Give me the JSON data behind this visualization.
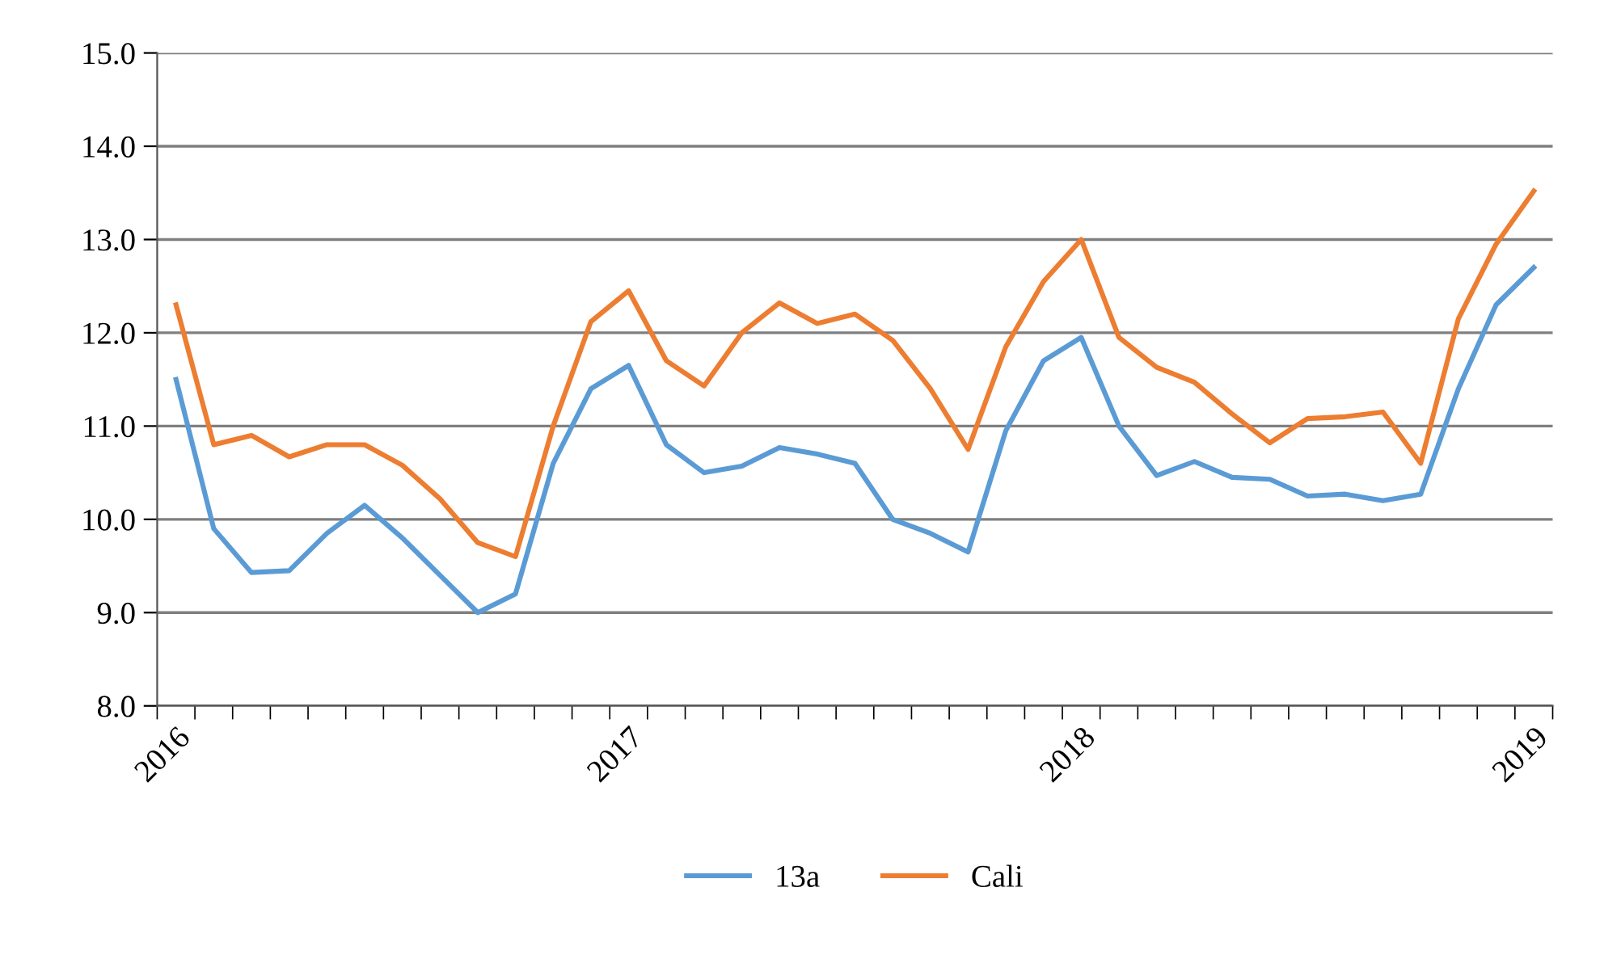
{
  "chart_data": {
    "type": "line",
    "categories": [
      "2016",
      null,
      null,
      null,
      null,
      null,
      null,
      null,
      null,
      null,
      null,
      null,
      "2017",
      null,
      null,
      null,
      null,
      null,
      null,
      null,
      null,
      null,
      null,
      null,
      "2018",
      null,
      null,
      null,
      null,
      null,
      null,
      null,
      null,
      null,
      null,
      null,
      "2019"
    ],
    "series": [
      {
        "name": "13a",
        "color": "#5b9bd5",
        "values": [
          11.5,
          9.9,
          9.43,
          9.45,
          9.85,
          10.15,
          9.8,
          9.4,
          9.0,
          9.2,
          10.6,
          11.4,
          11.65,
          10.8,
          10.5,
          10.57,
          10.77,
          10.7,
          10.6,
          10.0,
          9.85,
          9.65,
          10.95,
          11.7,
          11.95,
          11.0,
          10.47,
          10.62,
          10.45,
          10.43,
          10.25,
          10.27,
          10.2,
          10.27,
          11.4,
          12.3,
          12.7
        ]
      },
      {
        "name": "Cali",
        "color": "#ed7d31",
        "values": [
          12.3,
          10.8,
          10.9,
          10.67,
          10.8,
          10.8,
          10.58,
          10.22,
          9.75,
          9.6,
          11.0,
          12.12,
          12.45,
          11.7,
          11.43,
          12.0,
          12.32,
          12.1,
          12.2,
          11.92,
          11.4,
          10.75,
          11.85,
          12.55,
          13.0,
          11.95,
          11.63,
          11.47,
          11.13,
          10.82,
          11.08,
          11.1,
          11.15,
          10.6,
          12.15,
          12.95,
          13.52
        ]
      }
    ],
    "ylim": [
      8.0,
      15.0
    ],
    "yticks": [
      {
        "value": 8,
        "label": "8.0"
      },
      {
        "value": 9,
        "label": "9.0"
      },
      {
        "value": 10,
        "label": "10.0"
      },
      {
        "value": 11,
        "label": "11.0"
      },
      {
        "value": 12,
        "label": "12.0"
      },
      {
        "value": 13,
        "label": "13.0"
      },
      {
        "value": 14,
        "label": "14.0"
      },
      {
        "value": 15,
        "label": "15.0"
      }
    ],
    "grid": "y",
    "legend": "bottom",
    "marker": "none",
    "line_style": "solid"
  }
}
